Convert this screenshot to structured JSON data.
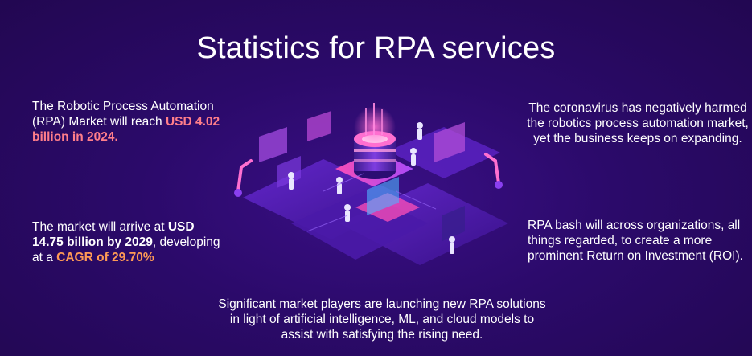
{
  "title": "Statistics for RPA services",
  "stats": {
    "top_left": {
      "prefix": "The Robotic Process Automation (RPA) Market will reach ",
      "highlight": "USD 4.02 billion in 2024."
    },
    "bottom_left": {
      "prefix": "The market will arrive at ",
      "highlight_1": "USD 14.75 billion by 2029",
      "middle": ", developing at a ",
      "highlight_2": "CAGR of 29.70%"
    },
    "top_right": {
      "text": "The coronavirus has negatively harmed the robotics process automation market, yet the business keeps on expanding."
    },
    "bottom_right": {
      "text": "RPA bash will across organizations, all things regarded, to create a more prominent Return on Investment (ROI)."
    },
    "bottom_center": {
      "text": "Significant market players are launching new RPA solutions in light of artificial intelligence, ML, and cloud models to assist with satisfying the rising need."
    }
  },
  "illustration": {
    "icon": "isometric-rpa-robots-illustration"
  },
  "colors": {
    "background": "#27095f",
    "highlight_pink": "#ff7e8a",
    "highlight_orange": "#ff9a55"
  }
}
